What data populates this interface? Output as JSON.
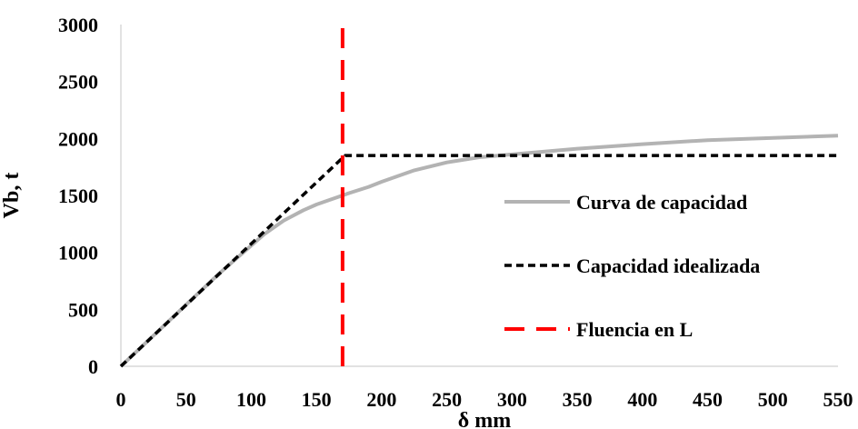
{
  "chart_data": {
    "type": "line",
    "xlabel": "δ mm",
    "ylabel": "Vb, t",
    "xlim": [
      0,
      550
    ],
    "ylim": [
      0,
      3000
    ],
    "x_ticks": [
      "0",
      "50",
      "100",
      "150",
      "200",
      "250",
      "300",
      "350",
      "400",
      "450",
      "500",
      "550"
    ],
    "y_ticks": [
      "0",
      "500",
      "1000",
      "1500",
      "2000",
      "2500",
      "3000"
    ],
    "grid": false,
    "legend_position": "right",
    "series": [
      {
        "name": "Curva de capacidad",
        "color": "#b3b3b3",
        "style": "solid",
        "x": [
          0,
          25,
          50,
          75,
          100,
          110,
          125,
          140,
          150,
          160,
          175,
          190,
          200,
          225,
          250,
          275,
          300,
          350,
          400,
          450,
          500,
          550
        ],
        "y": [
          0,
          270,
          540,
          810,
          1060,
          1160,
          1280,
          1370,
          1420,
          1460,
          1520,
          1575,
          1620,
          1720,
          1790,
          1835,
          1860,
          1910,
          1950,
          1985,
          2005,
          2025
        ]
      },
      {
        "name": "Capacidad idealizada",
        "color": "#000000",
        "style": "short-dash",
        "x": [
          0,
          172,
          550
        ],
        "y": [
          0,
          1850,
          1850
        ]
      },
      {
        "name": "Fluencia en L",
        "color": "#ff0000",
        "style": "long-dash",
        "x": [
          170,
          170
        ],
        "y": [
          0,
          3000
        ]
      }
    ]
  }
}
